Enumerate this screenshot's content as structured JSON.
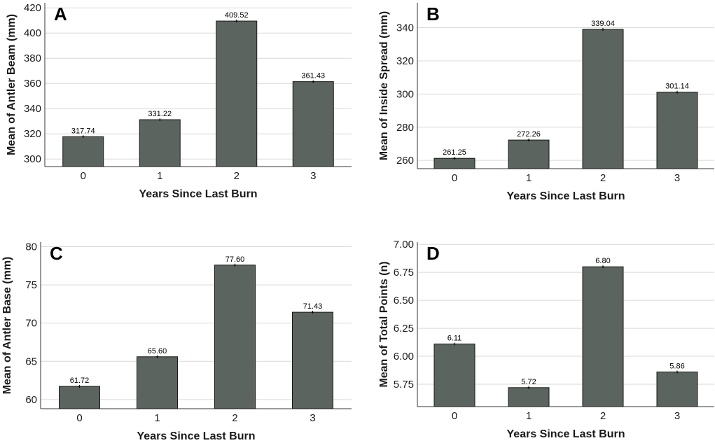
{
  "chart_data": [
    {
      "panel": "A",
      "type": "bar",
      "categories": [
        "0",
        "1",
        "2",
        "3"
      ],
      "values": [
        317.74,
        331.22,
        409.52,
        361.43
      ],
      "value_labels": [
        "317.74",
        "331.22",
        "409.52",
        "361.43"
      ],
      "xlabel": "Years Since Last Burn",
      "ylabel": "Mean of Antler Beam (mm)",
      "ylim": [
        294,
        424
      ],
      "yticks": [
        300,
        320,
        340,
        360,
        380,
        400,
        420
      ],
      "ytick_labels": [
        "300",
        "320",
        "340",
        "360",
        "380",
        "400",
        "420"
      ],
      "grid": true
    },
    {
      "panel": "B",
      "type": "bar",
      "categories": [
        "0",
        "1",
        "2",
        "3"
      ],
      "values": [
        261.25,
        272.26,
        339.04,
        301.14
      ],
      "value_labels": [
        "261.25",
        "272.26",
        "339.04",
        "301.14"
      ],
      "xlabel": "Years Since Last Burn",
      "ylabel": "Mean of Inside Spread (mm)",
      "ylim": [
        255,
        355
      ],
      "yticks": [
        260,
        280,
        300,
        320,
        340
      ],
      "ytick_labels": [
        "260",
        "280",
        "300",
        "320",
        "340"
      ],
      "grid": true
    },
    {
      "panel": "C",
      "type": "bar",
      "categories": [
        "0",
        "1",
        "2",
        "3"
      ],
      "values": [
        61.72,
        65.6,
        77.6,
        71.43
      ],
      "value_labels": [
        "61.72",
        "65.60",
        "77.60",
        "71.43"
      ],
      "xlabel": "Years Since Last Burn",
      "ylabel": "Mean of Antler Base (mm)",
      "ylim": [
        58.8,
        80.6
      ],
      "yticks": [
        60,
        65,
        70,
        75,
        80
      ],
      "ytick_labels": [
        "60",
        "65",
        "70",
        "75",
        "80"
      ],
      "grid": true
    },
    {
      "panel": "D",
      "type": "bar",
      "categories": [
        "0",
        "1",
        "2",
        "3"
      ],
      "values": [
        6.11,
        5.72,
        6.8,
        5.86
      ],
      "value_labels": [
        "6.11",
        "5.72",
        "6.80",
        "5.86"
      ],
      "xlabel": "Years Since Last Burn",
      "ylabel": "Mean of Total Points (n)",
      "ylim": [
        5.55,
        7.02
      ],
      "yticks": [
        5.75,
        6.0,
        6.25,
        6.5,
        6.75,
        7.0
      ],
      "ytick_labels": [
        "5.75",
        "6.00",
        "6.25",
        "6.50",
        "6.75",
        "7.00"
      ],
      "grid": true
    }
  ],
  "style": {
    "bar_color": "#5b645e",
    "bar_edge": "#1a1a1a",
    "grid_color": "#d9d9d9"
  }
}
